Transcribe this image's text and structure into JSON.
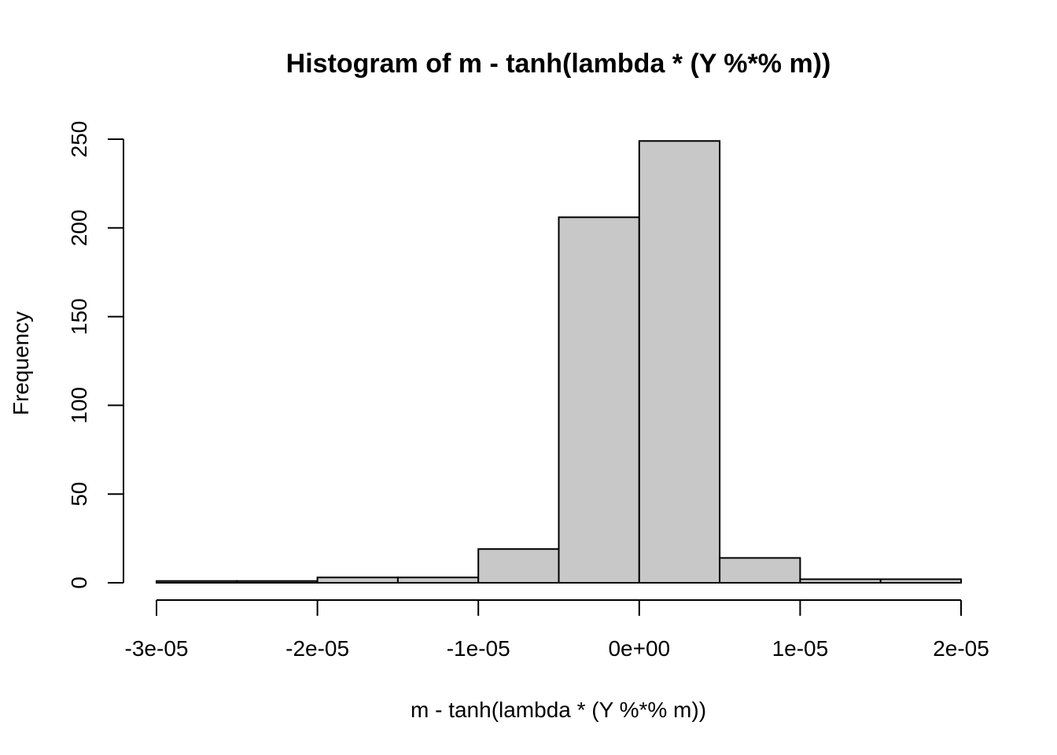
{
  "chart_data": {
    "type": "bar",
    "title": "Histogram of m - tanh(lambda * (Y %*% m))",
    "xlabel": "m - tanh(lambda * (Y %*% m))",
    "ylabel": "Frequency",
    "bins": [
      {
        "start": -3e-05,
        "end": -2.5e-05,
        "count": 1
      },
      {
        "start": -2.5e-05,
        "end": -2e-05,
        "count": 1
      },
      {
        "start": -2e-05,
        "end": -1.5e-05,
        "count": 3
      },
      {
        "start": -1.5e-05,
        "end": -1e-05,
        "count": 3
      },
      {
        "start": -1e-05,
        "end": -5e-06,
        "count": 19
      },
      {
        "start": -5e-06,
        "end": 0,
        "count": 206
      },
      {
        "start": 0,
        "end": 5e-06,
        "count": 249
      },
      {
        "start": 5e-06,
        "end": 1e-05,
        "count": 14
      },
      {
        "start": 1e-05,
        "end": 1.5e-05,
        "count": 2
      },
      {
        "start": 1.5e-05,
        "end": 2e-05,
        "count": 2
      }
    ],
    "xlim": [
      -3e-05,
      2e-05
    ],
    "ylim": [
      0,
      250
    ],
    "xticks": [
      {
        "value": -3e-05,
        "label": "-3e-05"
      },
      {
        "value": -2e-05,
        "label": "-2e-05"
      },
      {
        "value": -1e-05,
        "label": "-1e-05"
      },
      {
        "value": 0,
        "label": "0e+00"
      },
      {
        "value": 1e-05,
        "label": "1e-05"
      },
      {
        "value": 2e-05,
        "label": "2e-05"
      }
    ],
    "yticks": [
      {
        "value": 0,
        "label": "0"
      },
      {
        "value": 50,
        "label": "50"
      },
      {
        "value": 100,
        "label": "100"
      },
      {
        "value": 150,
        "label": "150"
      },
      {
        "value": 200,
        "label": "200"
      },
      {
        "value": 250,
        "label": "250"
      }
    ],
    "grid": false,
    "legend": "none",
    "colors": {
      "bar_fill": "#c8c8c8",
      "bar_stroke": "#000000"
    }
  }
}
